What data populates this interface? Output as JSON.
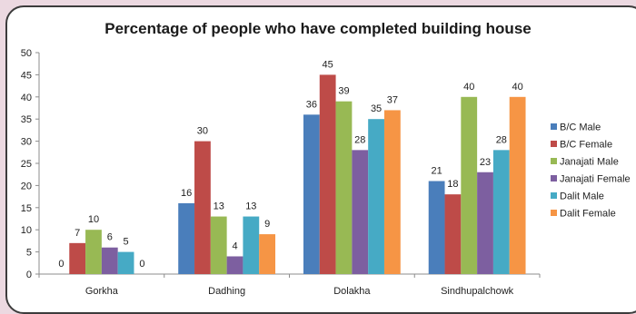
{
  "chart_data": {
    "type": "bar",
    "title": "Percentage of people who have completed building house",
    "categories": [
      "Gorkha",
      "Dadhing",
      "Dolakha",
      "Sindhupalchowk"
    ],
    "series": [
      {
        "name": "B/C Male",
        "color": "#4a7ebb",
        "values": [
          0,
          16,
          36,
          21
        ]
      },
      {
        "name": "B/C Female",
        "color": "#be4b48",
        "values": [
          7,
          30,
          45,
          18
        ]
      },
      {
        "name": "Janajati Male",
        "color": "#98b954",
        "values": [
          10,
          13,
          39,
          40
        ]
      },
      {
        "name": "Janajati Female",
        "color": "#7d5fa0",
        "values": [
          6,
          4,
          28,
          23
        ]
      },
      {
        "name": "Dalit Male",
        "color": "#46aac5",
        "values": [
          5,
          13,
          35,
          28
        ]
      },
      {
        "name": "Dalit Female",
        "color": "#f69545",
        "values": [
          0,
          9,
          37,
          40
        ]
      }
    ],
    "ylim": [
      0,
      50
    ],
    "ytick_step": 5,
    "xlabel": "",
    "ylabel": "",
    "legend_position": "right",
    "grid": false
  }
}
